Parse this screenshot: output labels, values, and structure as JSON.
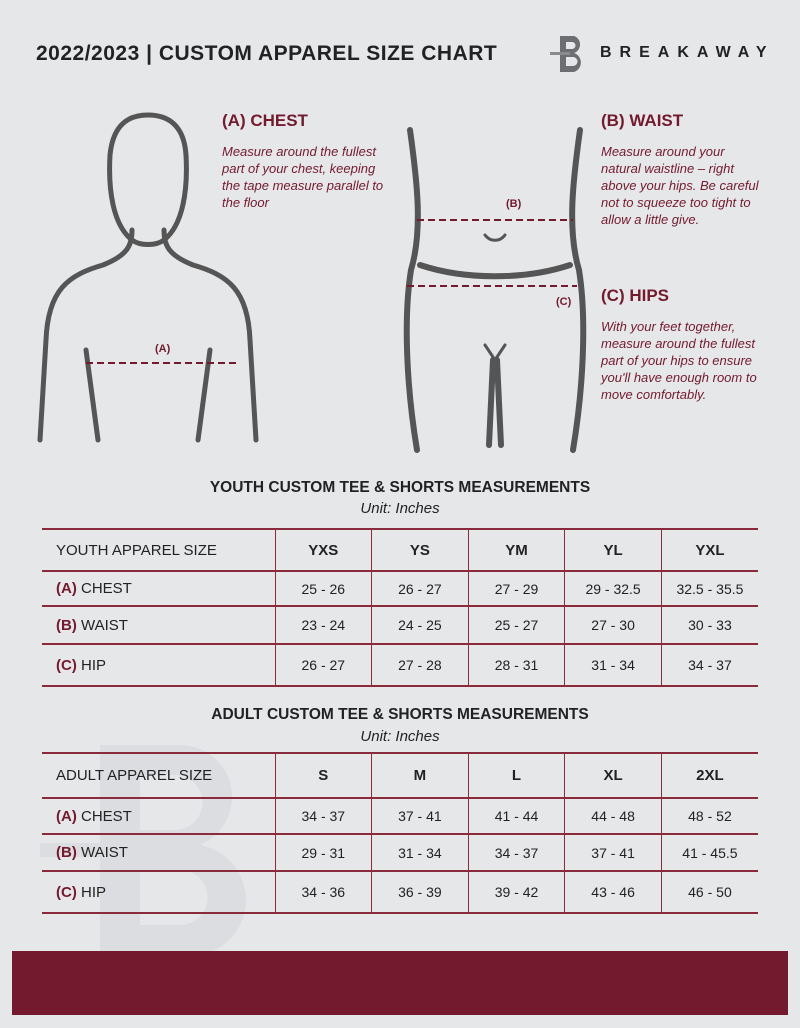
{
  "header": {
    "title": "2022/2023  |  CUSTOM APPAREL SIZE CHART",
    "brand": "BREAKAWAY"
  },
  "measures": {
    "chest": {
      "heading": "(A) CHEST",
      "marker": "(A)",
      "text": "Measure around the fullest part of your chest, keeping the tape measure parallel to the floor"
    },
    "waist": {
      "heading": "(B) WAIST",
      "marker": "(B)",
      "text": "Measure around your natural waistline – right above your hips. Be careful not to squeeze too tight to allow a little give."
    },
    "hips": {
      "heading": "(C) HIPS",
      "marker": "(C)",
      "text": "With your feet together, measure around the fullest part of your hips to ensure you'll have enough room to move comfortably."
    }
  },
  "youth": {
    "title": "YOUTH CUSTOM TEE & SHORTS MEASUREMENTS",
    "unit": "Unit: Inches",
    "header": [
      "YOUTH APPAREL SIZE",
      "YXS",
      "YS",
      "YM",
      "YL",
      "YXL"
    ],
    "rows": [
      {
        "code": "(A)",
        "name": "CHEST",
        "values": [
          "25 - 26",
          "26 - 27",
          "27 - 29",
          "29 - 32.5",
          "32.5 - 35.5"
        ]
      },
      {
        "code": "(B)",
        "name": "WAIST",
        "values": [
          "23 - 24",
          "24 - 25",
          "25 - 27",
          "27 - 30",
          "30 - 33"
        ]
      },
      {
        "code": "(C)",
        "name": "HIP",
        "values": [
          "26 - 27",
          "27 - 28",
          "28 - 31",
          "31 - 34",
          "34 - 37"
        ]
      }
    ]
  },
  "adult": {
    "title": "ADULT CUSTOM TEE & SHORTS MEASUREMENTS",
    "unit": "Unit: Inches",
    "header": [
      "ADULT APPAREL SIZE",
      "S",
      "M",
      "L",
      "XL",
      "2XL"
    ],
    "rows": [
      {
        "code": "(A)",
        "name": "CHEST",
        "values": [
          "34 - 37",
          "37 - 41",
          "41 - 44",
          "44 - 48",
          "48 - 52"
        ]
      },
      {
        "code": "(B)",
        "name": "WAIST",
        "values": [
          "29 - 31",
          "31 - 34",
          "34 - 37",
          "37 - 41",
          "41 - 45.5"
        ]
      },
      {
        "code": "(C)",
        "name": "HIP",
        "values": [
          "34 - 36",
          "36 - 39",
          "39 - 42",
          "43 - 46",
          "46 - 50"
        ]
      }
    ]
  },
  "colors": {
    "accent": "#731a2e",
    "background": "#e6e7e9"
  }
}
